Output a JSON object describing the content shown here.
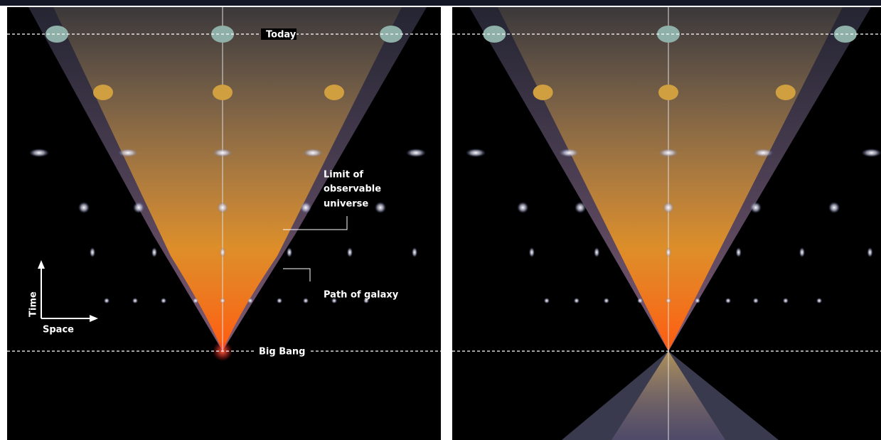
{
  "labels": {
    "today": "Today",
    "big_bang": "Big Bang",
    "limit": [
      "Limit of",
      "observable",
      "universe"
    ],
    "path": "Path of galaxy",
    "time": "Time",
    "space": "Space"
  }
}
